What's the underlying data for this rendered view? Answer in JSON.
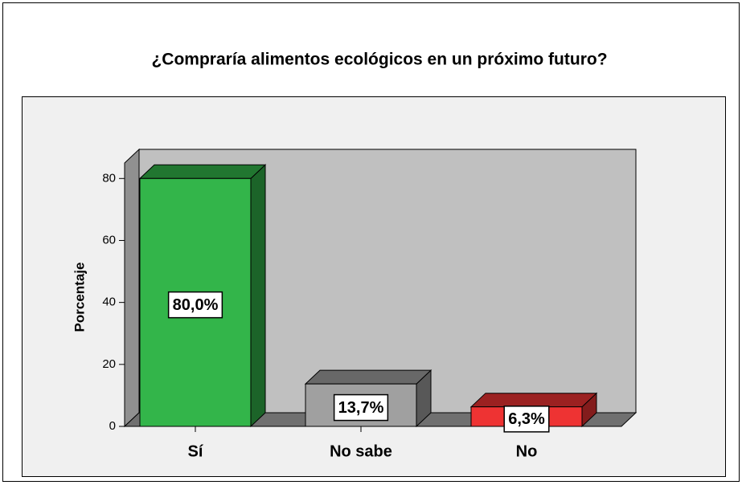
{
  "chart_data": {
    "type": "bar3d",
    "title": "¿Compraría alimentos ecológicos en un próximo futuro?",
    "y_label": "Porcentaje",
    "categories": [
      "Sí",
      "No sabe",
      "No"
    ],
    "values": [
      80.0,
      13.7,
      6.3
    ],
    "value_labels": [
      "80,0%",
      "13,7%",
      "6,3%"
    ],
    "colors": [
      "#33b54a",
      "#a0a0a0",
      "#ee3333"
    ],
    "ylim": [
      0,
      85
    ],
    "yticks": [
      0,
      20,
      40,
      60,
      80
    ]
  }
}
